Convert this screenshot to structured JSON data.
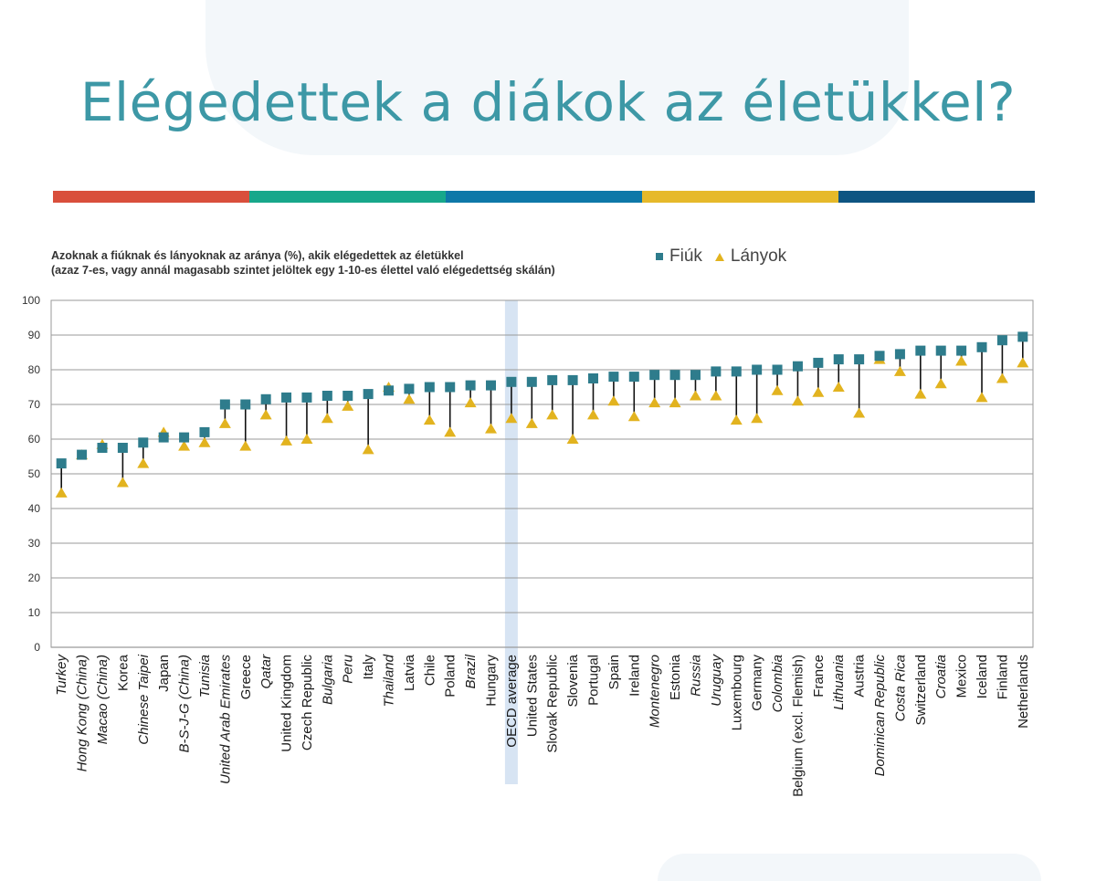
{
  "page": {
    "title": "Elégedettek a diákok az életükkel?",
    "stripe_colors": [
      "#d94f3c",
      "#17a78b",
      "#0e78a8",
      "#e6b92a",
      "#0e5582"
    ]
  },
  "chart_data": {
    "type": "scatter",
    "subtitle_line1": "Azoknak a fiúknak és lányoknak az aránya (%), akik elégedettek az életükkel",
    "subtitle_line2": "(azaz 7-es, vagy annál magasabb szintet jelöltek egy 1-10-es élettel való elégedettség skálán)",
    "ylim": [
      0,
      100
    ],
    "yticks": [
      0,
      10,
      20,
      30,
      40,
      50,
      60,
      70,
      80,
      90,
      100
    ],
    "grid": true,
    "legend_position": "top-right",
    "highlight_category": "OECD average",
    "categories": [
      "Turkey",
      "Hong Kong (China)",
      "Macao (China)",
      "Korea",
      "Chinese Taipei",
      "Japan",
      "B-S-J-G (China)",
      "Tunisia",
      "United Arab Emirates",
      "Greece",
      "Qatar",
      "United Kingdom",
      "Czech Republic",
      "Bulgaria",
      "Peru",
      "Italy",
      "Thailand",
      "Latvia",
      "Chile",
      "Poland",
      "Brazil",
      "Hungary",
      "OECD average",
      "United States",
      "Slovak Republic",
      "Slovenia",
      "Portugal",
      "Spain",
      "Ireland",
      "Montenegro",
      "Estonia",
      "Russia",
      "Uruguay",
      "Luxembourg",
      "Germany",
      "Colombia",
      "Belgium (excl. Flemish)",
      "France",
      "Lithuania",
      "Austria",
      "Dominican Republic",
      "Costa Rica",
      "Switzerland",
      "Croatia",
      "Mexico",
      "Iceland",
      "Finland",
      "Netherlands"
    ],
    "italic_categories": [
      "Turkey",
      "Hong Kong (China)",
      "Macao (China)",
      "Chinese Taipei",
      "B-S-J-G (China)",
      "Tunisia",
      "United Arab Emirates",
      "Qatar",
      "Bulgaria",
      "Peru",
      "Thailand",
      "Brazil",
      "Montenegro",
      "Russia",
      "Uruguay",
      "Colombia",
      "Lithuania",
      "Dominican Republic",
      "Costa Rica",
      "Croatia"
    ],
    "series": [
      {
        "name": "Fiúk",
        "marker": "square",
        "color": "#2e7c8c",
        "values": [
          53,
          55.5,
          57.5,
          57.5,
          59,
          60.5,
          60.5,
          62,
          70,
          70,
          71.5,
          72,
          72,
          72.5,
          72.5,
          73,
          74,
          74.5,
          75,
          75,
          75.5,
          75.5,
          76.5,
          76.5,
          77,
          77,
          77.5,
          78,
          78,
          78.5,
          78.5,
          78.5,
          79.5,
          79.5,
          80,
          80,
          81,
          82,
          83,
          83,
          84,
          84.5,
          85.5,
          85.5,
          85.5,
          86.5,
          88.5,
          89.5
        ]
      },
      {
        "name": "Lányok",
        "marker": "triangle",
        "color": "#e2b31f",
        "values": [
          44.5,
          55.5,
          58.5,
          47.5,
          53,
          62,
          58,
          59,
          64.5,
          58,
          67,
          59.5,
          60,
          66,
          69.5,
          57,
          75,
          71.5,
          65.5,
          62,
          70.5,
          63,
          66,
          64.5,
          67,
          60,
          67,
          71,
          66.5,
          70.5,
          70.5,
          72.5,
          72.5,
          65.5,
          66,
          74,
          71,
          73.5,
          75,
          67.5,
          83,
          79.5,
          73,
          76,
          82.5,
          72,
          77.5,
          82
        ]
      }
    ]
  }
}
